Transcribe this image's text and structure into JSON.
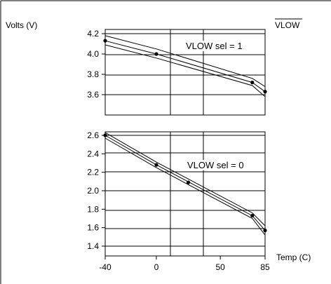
{
  "chart_data": [
    {
      "type": "line",
      "ylabel": "Volts (V)",
      "corner_label": "VLOW",
      "annotation": "VLOW sel = 1",
      "ylim": [
        3.4,
        4.25
      ],
      "yticks": [
        4.2,
        4.0,
        3.8,
        3.6
      ],
      "ytick_labels": [
        "4.2",
        "4.0",
        "3.8",
        "3.6"
      ],
      "xlim": [
        -40,
        85
      ],
      "series": [
        {
          "x": [
            -40,
            0,
            75,
            85
          ],
          "y": [
            4.18,
            4.05,
            3.76,
            3.68
          ]
        },
        {
          "x": [
            -40,
            0,
            75,
            85
          ],
          "y": [
            4.13,
            4.0,
            3.72,
            3.63
          ]
        },
        {
          "x": [
            -40,
            0,
            75,
            85
          ],
          "y": [
            4.09,
            3.96,
            3.69,
            3.58
          ]
        }
      ],
      "points": {
        "x": [
          -40,
          0,
          75,
          85
        ],
        "y": [
          4.13,
          4.0,
          3.72,
          3.63
        ]
      }
    },
    {
      "type": "line",
      "annotation": "VLOW sel = 0",
      "xlabel": "Temp (C)",
      "ylim": [
        1.35,
        2.65
      ],
      "yticks": [
        2.6,
        2.4,
        2.2,
        2.0,
        1.8,
        1.6,
        1.4
      ],
      "ytick_labels": [
        "2.6",
        "2.4",
        "2.2",
        "2.0",
        "1.8",
        "1.6",
        "1.4"
      ],
      "xlim": [
        -40,
        85
      ],
      "xticks": [
        -40,
        0,
        50,
        85
      ],
      "xtick_labels": [
        "-40",
        "0",
        "50",
        "85"
      ],
      "series": [
        {
          "x": [
            -40,
            0,
            75,
            85
          ],
          "y": [
            2.63,
            2.31,
            1.76,
            1.62
          ]
        },
        {
          "x": [
            -40,
            0,
            75,
            85
          ],
          "y": [
            2.6,
            2.28,
            1.73,
            1.57
          ]
        },
        {
          "x": [
            -40,
            0,
            75,
            85
          ],
          "y": [
            2.57,
            2.25,
            1.7,
            1.52
          ]
        }
      ],
      "points": {
        "x": [
          -40,
          0,
          25,
          75,
          85
        ],
        "y": [
          2.6,
          2.28,
          2.09,
          1.73,
          1.57
        ]
      }
    }
  ]
}
